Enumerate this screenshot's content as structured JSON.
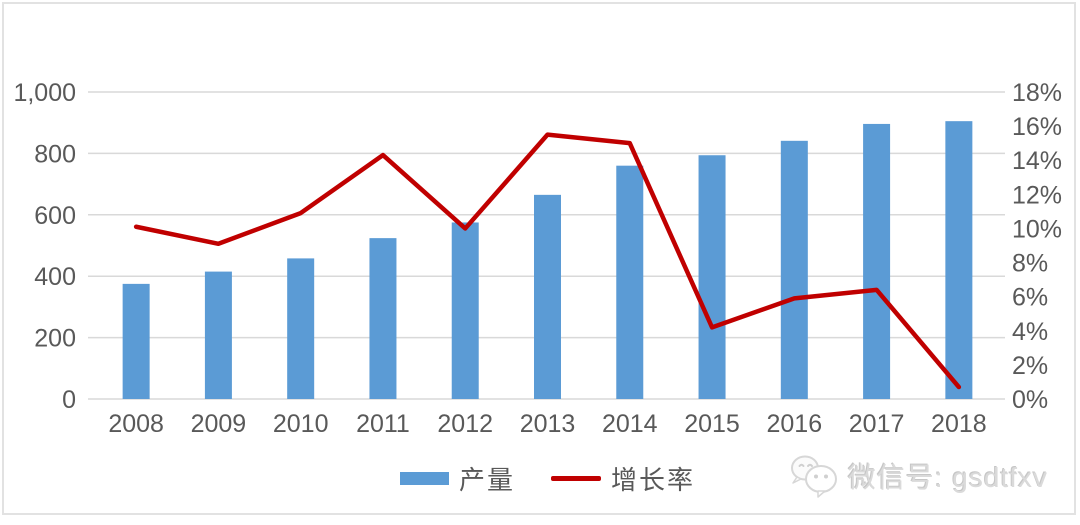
{
  "chart_data": {
    "type": "combo-bar-line",
    "categories": [
      "2008",
      "2009",
      "2010",
      "2011",
      "2012",
      "2013",
      "2014",
      "2015",
      "2016",
      "2017",
      "2018"
    ],
    "series": [
      {
        "name": "产量",
        "type": "bar",
        "axis": "left",
        "color": "#5b9bd5",
        "values": [
          375,
          415,
          458,
          524,
          575,
          665,
          760,
          794,
          841,
          896,
          905
        ]
      },
      {
        "name": "增长率",
        "type": "line",
        "axis": "right",
        "color": "#c00000",
        "values": [
          10.1,
          9.1,
          10.9,
          14.3,
          10.0,
          15.5,
          15.0,
          4.2,
          5.9,
          6.4,
          0.7
        ]
      }
    ],
    "left_axis": {
      "min": 0,
      "max": 1000,
      "step": 200,
      "tick_labels": [
        "0",
        "200",
        "400",
        "600",
        "800",
        "1,000"
      ]
    },
    "right_axis": {
      "min": 0,
      "max": 18,
      "step": 2,
      "unit": "%",
      "tick_labels": [
        "0%",
        "2%",
        "4%",
        "6%",
        "8%",
        "10%",
        "12%",
        "14%",
        "16%",
        "18%"
      ]
    },
    "grid": true,
    "legend_position": "bottom"
  },
  "legend": {
    "bar_label": "产量",
    "line_label": "增长率"
  },
  "watermark": {
    "icon": "wechat-icon",
    "text": "微信号: gsdtfxv"
  },
  "colors": {
    "bar": "#5b9bd5",
    "line": "#c00000",
    "axis_text": "#595959",
    "gridline": "#d9d9d9",
    "frame_border": "#e2e2e2",
    "watermark_text": "#dadada"
  }
}
